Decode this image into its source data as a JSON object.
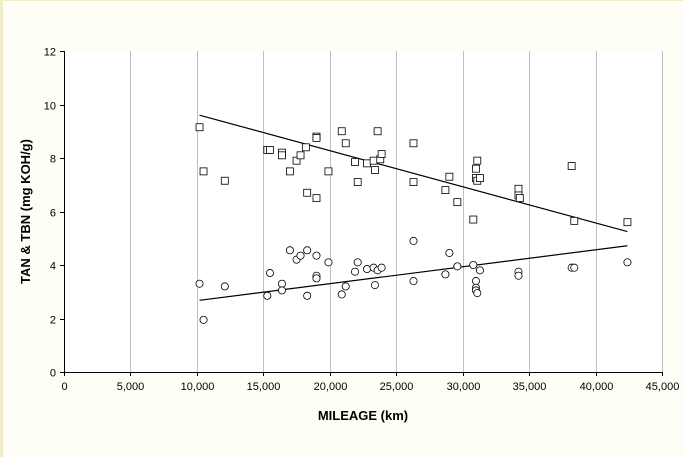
{
  "chart_data": {
    "type": "scatter",
    "xlabel": "MILEAGE (km)",
    "ylabel": "TAN & TBN (mg KOH/g)",
    "xlim": [
      0,
      45000
    ],
    "ylim": [
      0,
      12
    ],
    "x_ticks": [
      0,
      5000,
      10000,
      15000,
      20000,
      25000,
      30000,
      35000,
      40000,
      45000
    ],
    "x_tick_labels": [
      "0",
      "5,000",
      "10,000",
      "15,000",
      "20,000",
      "25,000",
      "30,000",
      "35,000",
      "40,000",
      "45,000"
    ],
    "y_ticks": [
      0,
      2,
      4,
      6,
      8,
      10,
      12
    ],
    "y_tick_labels": [
      "0",
      "2",
      "4",
      "6",
      "8",
      "10",
      "12"
    ],
    "grid": {
      "vertical": true,
      "horizontal": false
    },
    "series": [
      {
        "marker": "square",
        "points": [
          [
            10200,
            9.15
          ],
          [
            10500,
            7.5
          ],
          [
            12100,
            7.15
          ],
          [
            15300,
            8.3
          ],
          [
            15500,
            8.3
          ],
          [
            16400,
            8.2
          ],
          [
            16400,
            8.1
          ],
          [
            17000,
            7.5
          ],
          [
            17500,
            7.9
          ],
          [
            17800,
            8.1
          ],
          [
            18200,
            8.4
          ],
          [
            18300,
            6.7
          ],
          [
            19000,
            8.8
          ],
          [
            19000,
            8.75
          ],
          [
            19000,
            6.5
          ],
          [
            19900,
            7.5
          ],
          [
            20900,
            9.0
          ],
          [
            21200,
            8.55
          ],
          [
            21900,
            7.85
          ],
          [
            22100,
            7.1
          ],
          [
            22800,
            7.8
          ],
          [
            23300,
            7.9
          ],
          [
            23400,
            7.55
          ],
          [
            23600,
            9.0
          ],
          [
            23800,
            7.95
          ],
          [
            23900,
            8.15
          ],
          [
            26300,
            7.1
          ],
          [
            26300,
            8.55
          ],
          [
            28700,
            6.8
          ],
          [
            29000,
            7.3
          ],
          [
            29600,
            6.35
          ],
          [
            30800,
            5.7
          ],
          [
            31000,
            7.6
          ],
          [
            31000,
            7.25
          ],
          [
            31100,
            7.9
          ],
          [
            31100,
            7.15
          ],
          [
            31300,
            7.25
          ],
          [
            34200,
            6.85
          ],
          [
            34200,
            6.6
          ],
          [
            34300,
            6.5
          ],
          [
            38200,
            7.7
          ],
          [
            38400,
            5.65
          ],
          [
            42400,
            5.6
          ]
        ],
        "trend": [
          [
            10200,
            9.6
          ],
          [
            42400,
            5.25
          ]
        ]
      },
      {
        "marker": "circle",
        "points": [
          [
            10200,
            3.3
          ],
          [
            10500,
            1.95
          ],
          [
            12100,
            3.2
          ],
          [
            15300,
            2.85
          ],
          [
            15500,
            3.7
          ],
          [
            16400,
            3.3
          ],
          [
            16400,
            3.05
          ],
          [
            17000,
            4.55
          ],
          [
            17500,
            4.2
          ],
          [
            17800,
            4.35
          ],
          [
            18300,
            4.55
          ],
          [
            18300,
            2.85
          ],
          [
            19000,
            4.35
          ],
          [
            19000,
            3.6
          ],
          [
            19000,
            3.5
          ],
          [
            19900,
            4.1
          ],
          [
            20900,
            2.9
          ],
          [
            21200,
            3.2
          ],
          [
            21900,
            3.75
          ],
          [
            22100,
            4.1
          ],
          [
            22800,
            3.85
          ],
          [
            23300,
            3.9
          ],
          [
            23400,
            3.25
          ],
          [
            23600,
            3.8
          ],
          [
            23900,
            3.9
          ],
          [
            26300,
            4.9
          ],
          [
            26300,
            3.4
          ],
          [
            28700,
            3.65
          ],
          [
            29000,
            4.45
          ],
          [
            29600,
            3.95
          ],
          [
            30800,
            4.0
          ],
          [
            31000,
            3.4
          ],
          [
            31000,
            3.15
          ],
          [
            31000,
            3.05
          ],
          [
            31100,
            2.95
          ],
          [
            31300,
            3.8
          ],
          [
            34200,
            3.75
          ],
          [
            34200,
            3.6
          ],
          [
            38200,
            3.9
          ],
          [
            38400,
            3.9
          ],
          [
            42400,
            4.1
          ]
        ],
        "trend": [
          [
            10200,
            2.68
          ],
          [
            42400,
            4.72
          ]
        ]
      }
    ]
  }
}
